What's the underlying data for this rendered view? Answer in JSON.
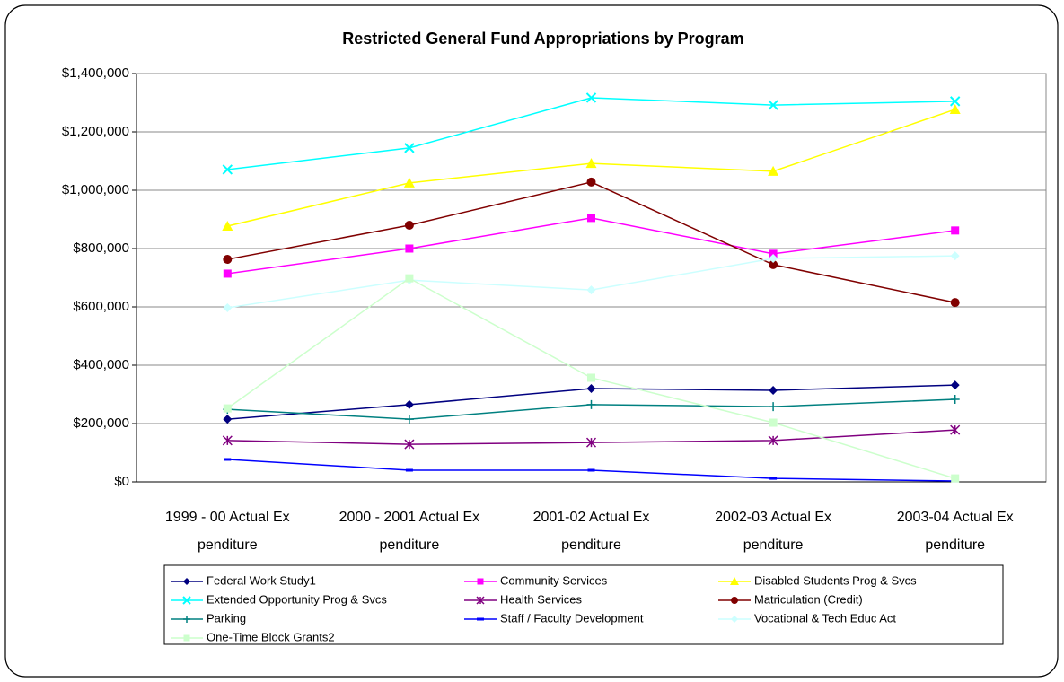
{
  "chart_data": {
    "type": "line",
    "title": "Restricted General Fund Appropriations by Program",
    "categories": [
      "1999 - 00 Actual Ex penditure",
      "2000 - 2001 Actual Ex penditure",
      "2001-02 Actual Ex penditure",
      "2002-03 Actual Ex penditure",
      "2003-04 Actual Ex penditure"
    ],
    "ylim": [
      0,
      1400000
    ],
    "yticks": [
      {
        "value": 0,
        "label": "$0"
      },
      {
        "value": 200000,
        "label": "$200,000"
      },
      {
        "value": 400000,
        "label": "$400,000"
      },
      {
        "value": 600000,
        "label": "$600,000"
      },
      {
        "value": 800000,
        "label": "$800,000"
      },
      {
        "value": 1000000,
        "label": "$1,000,000"
      },
      {
        "value": 1200000,
        "label": "$1,200,000"
      },
      {
        "value": 1400000,
        "label": "$1,400,000"
      }
    ],
    "grid": true,
    "legend": "bottom",
    "series": [
      {
        "name": "Federal Work Study1",
        "color": "#000080",
        "marker": "diamond",
        "values": [
          215000,
          265000,
          320000,
          314000,
          332000
        ]
      },
      {
        "name": "Community Services",
        "color": "#FF00FF",
        "marker": "square",
        "values": [
          714000,
          800000,
          905000,
          782000,
          862000
        ]
      },
      {
        "name": "Disabled Students Prog & Svcs",
        "color": "#FFFF00",
        "marker": "triangle",
        "values": [
          877000,
          1025000,
          1092000,
          1065000,
          1277000
        ]
      },
      {
        "name": "Extended Opportunity Prog & Svcs",
        "color": "#00FFFF",
        "marker": "x",
        "values": [
          1071000,
          1145000,
          1317000,
          1292000,
          1305000
        ]
      },
      {
        "name": "Health Services",
        "color": "#800080",
        "marker": "star",
        "values": [
          142000,
          129000,
          135000,
          142000,
          178000
        ]
      },
      {
        "name": "Matriculation (Credit)",
        "color": "#800000",
        "marker": "circle",
        "values": [
          763000,
          880000,
          1028000,
          745000,
          615000
        ]
      },
      {
        "name": "Parking",
        "color": "#008080",
        "marker": "plus",
        "values": [
          249000,
          215000,
          265000,
          258000,
          283000
        ]
      },
      {
        "name": "Staff / Faculty Development",
        "color": "#0000FF",
        "marker": "dash",
        "values": [
          77000,
          40000,
          40000,
          12000,
          3000
        ]
      },
      {
        "name": "Vocational & Tech Educ Act",
        "color": "#CCFFFF",
        "marker": "diamond",
        "values": [
          597000,
          692000,
          658000,
          766000,
          775000
        ]
      },
      {
        "name": "One-Time Block Grants2",
        "color": "#CCFFCC",
        "marker": "square",
        "values": [
          252000,
          698000,
          357000,
          203000,
          12000
        ]
      }
    ]
  }
}
